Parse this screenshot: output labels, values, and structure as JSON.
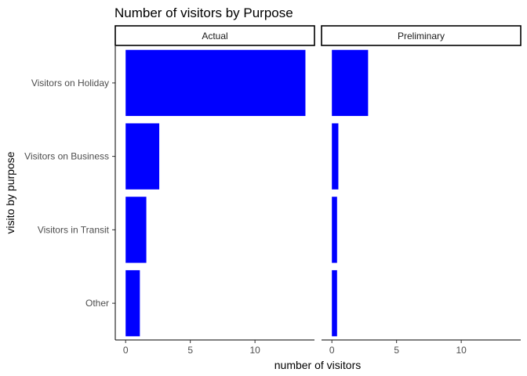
{
  "chart_data": {
    "type": "bar",
    "orientation": "horizontal",
    "title": "Number of visitors by Purpose",
    "xlabel": "number of visitors",
    "ylabel": "visito by purpose",
    "categories": [
      "Visitors on Holiday",
      "Visitors on Business",
      "Visitors in Transit",
      "Other"
    ],
    "xlim": [
      -0.8,
      14.6
    ],
    "xticks": [
      0,
      5,
      10
    ],
    "bar_color": "#0000ff",
    "grid": false,
    "legend": "none",
    "facets": [
      {
        "name": "Actual",
        "values": [
          13.9,
          2.6,
          1.6,
          1.1
        ]
      },
      {
        "name": "Preliminary",
        "values": [
          2.8,
          0.5,
          0.4,
          0.4
        ]
      }
    ]
  }
}
